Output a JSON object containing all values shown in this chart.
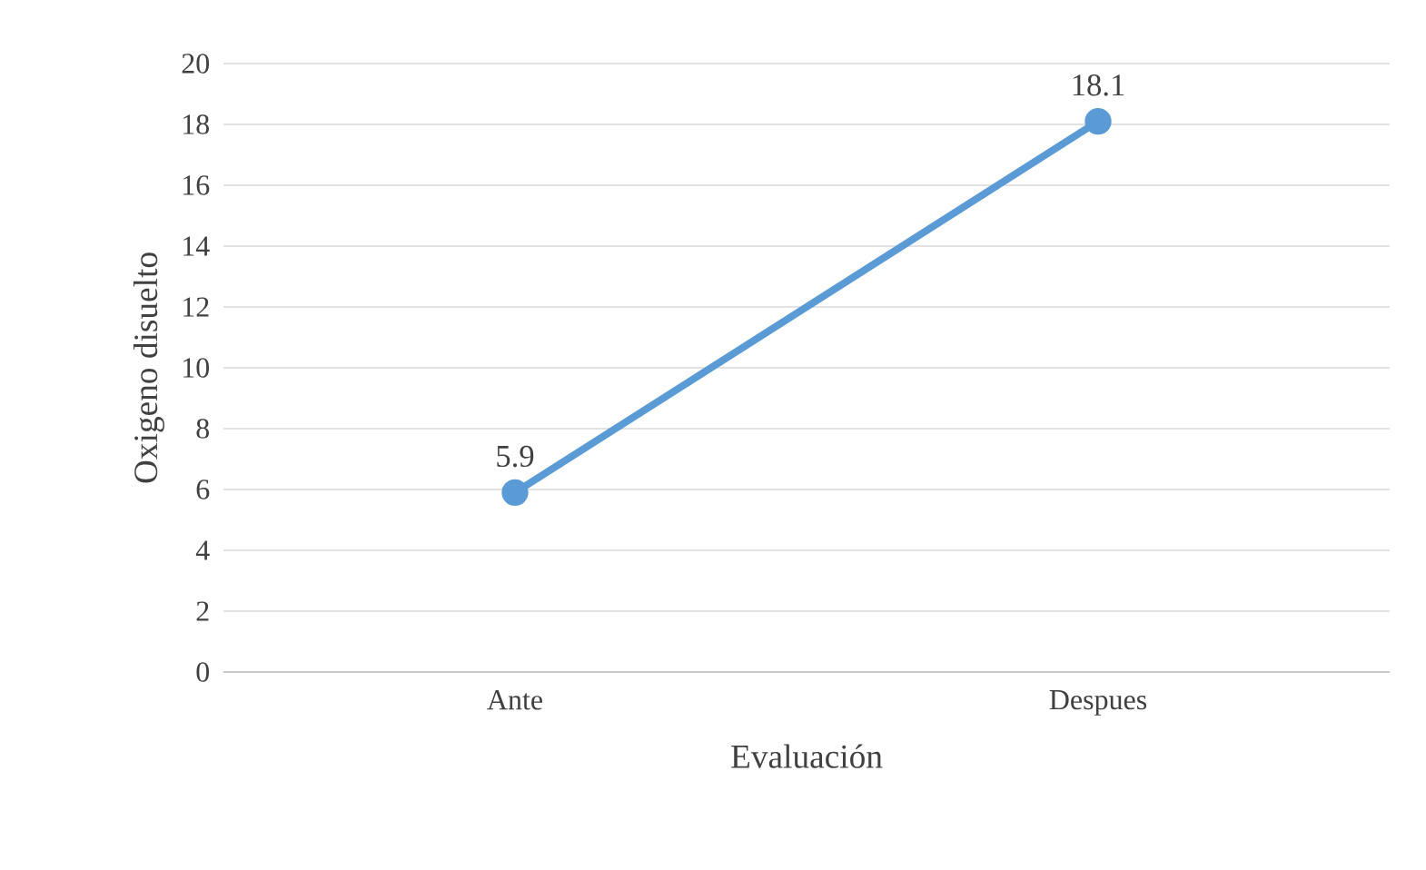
{
  "chart_data": {
    "type": "line",
    "xlabel": "Evaluación",
    "ylabel": "Oxigeno disuelto",
    "categories": [
      "Ante",
      "Despues"
    ],
    "series": [
      {
        "color": "#5b9bd5",
        "values": [
          5.9,
          18.1
        ]
      }
    ],
    "ylim": [
      0,
      20
    ],
    "yticks": [
      0,
      2,
      4,
      6,
      8,
      10,
      12,
      14,
      16,
      18,
      20
    ],
    "grid": "y",
    "marker": "circle",
    "line_style": "solid",
    "data_labels": true
  }
}
